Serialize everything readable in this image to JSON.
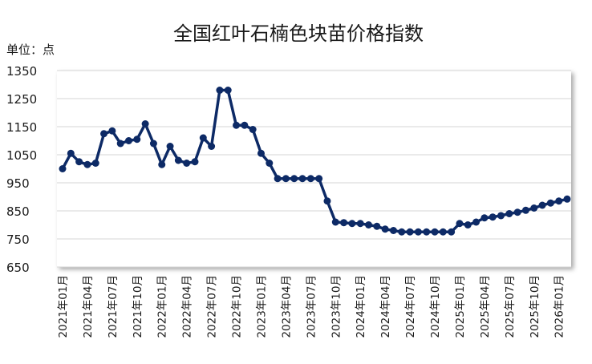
{
  "chart_data": {
    "type": "line",
    "title": "全国红叶石楠色块苗价格指数",
    "unit_label": "单位：点",
    "ylim": [
      650,
      1350
    ],
    "yticks": [
      650,
      750,
      850,
      950,
      1050,
      1150,
      1250,
      1350
    ],
    "grid": true,
    "line_color": "#0d2a66",
    "categories": [
      "2021年01月",
      "2021年02月",
      "2021年03月",
      "2021年04月",
      "2021年05月",
      "2021年06月",
      "2021年07月",
      "2021年08月",
      "2021年09月",
      "2021年10月",
      "2021年11月",
      "2021年12月",
      "2022年01月",
      "2022年02月",
      "2022年03月",
      "2022年04月",
      "2022年05月",
      "2022年06月",
      "2022年07月",
      "2022年08月",
      "2022年09月",
      "2022年10月",
      "2022年11月",
      "2022年12月",
      "2023年01月",
      "2023年02月",
      "2023年03月",
      "2023年04月",
      "2023年05月",
      "2023年06月",
      "2023年07月",
      "2023年08月",
      "2023年09月",
      "2023年10月",
      "2023年11月",
      "2023年12月",
      "2024年01月",
      "2024年02月",
      "2024年03月",
      "2024年04月",
      "2024年05月",
      "2024年06月",
      "2024年07月",
      "2024年08月",
      "2024年09月",
      "2024年10月",
      "2024年11月",
      "2024年12月",
      "2025年01月",
      "2025年02月",
      "2025年03月",
      "2025年04月",
      "2025年05月",
      "2025年06月",
      "2025年07月",
      "2025年08月",
      "2025年09月",
      "2025年10月",
      "2025年11月",
      "2025年12月",
      "2026年01月",
      "2026年02月"
    ],
    "tick_labels": [
      "2021年01月",
      "2021年04月",
      "2021年07月",
      "2021年10月",
      "2022年01月",
      "2022年04月",
      "2022年07月",
      "2022年10月",
      "2023年01月",
      "2023年04月",
      "2023年07月",
      "2023年10月",
      "2024年01月",
      "2024年04月",
      "2024年07月",
      "2024年10月",
      "2025年01月",
      "2025年04月",
      "2025年07月",
      "2025年10月",
      "2026年01月"
    ],
    "series": [
      {
        "values": [
          1000,
          1055,
          1025,
          1015,
          1020,
          1125,
          1135,
          1090,
          1100,
          1105,
          1160,
          1090,
          1015,
          1080,
          1030,
          1020,
          1025,
          1110,
          1080,
          1280,
          1280,
          1155,
          1155,
          1140,
          1055,
          1020,
          965,
          965,
          965,
          965,
          965,
          965,
          885,
          810,
          808,
          805,
          805,
          800,
          795,
          785,
          780,
          775,
          775,
          775,
          775,
          775,
          775,
          775,
          805,
          800,
          810,
          825,
          828,
          833,
          840,
          845,
          852,
          860,
          870,
          878,
          885,
          892
        ]
      }
    ]
  }
}
